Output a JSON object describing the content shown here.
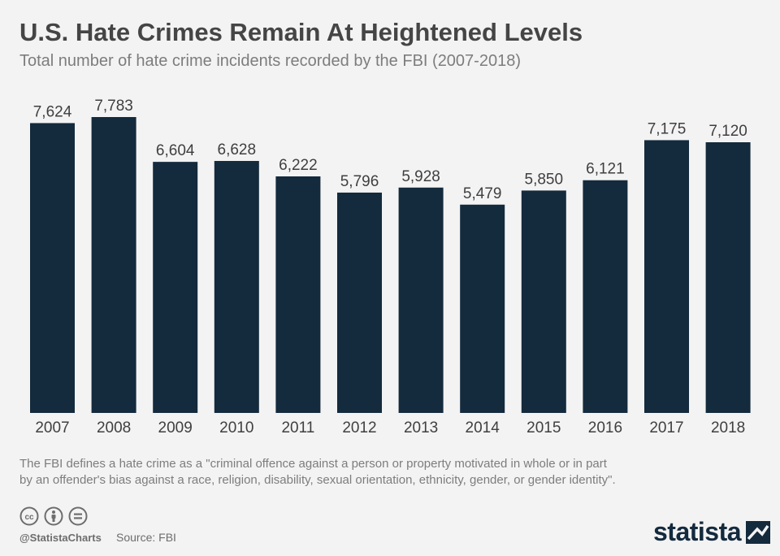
{
  "header": {
    "title": "U.S. Hate Crimes Remain At Heightened Levels",
    "subtitle": "Total number of hate crime incidents recorded by the FBI (2007-2018)"
  },
  "chart_data": {
    "type": "bar",
    "title": "U.S. Hate Crimes Remain At Heightened Levels",
    "subtitle": "Total number of hate crime incidents recorded by the FBI (2007-2018)",
    "categories": [
      "2007",
      "2008",
      "2009",
      "2010",
      "2011",
      "2012",
      "2013",
      "2014",
      "2015",
      "2016",
      "2017",
      "2018"
    ],
    "values": [
      7624,
      7783,
      6604,
      6628,
      6222,
      5796,
      5928,
      5479,
      5850,
      6121,
      7175,
      7120
    ],
    "value_labels": [
      "7,624",
      "7,783",
      "6,604",
      "6,628",
      "6,222",
      "5,796",
      "5,928",
      "5,479",
      "5,850",
      "6,121",
      "7,175",
      "7,120"
    ],
    "xlabel": "",
    "ylabel": "",
    "ylim": [
      0,
      7783
    ],
    "grid": false,
    "legend": "none",
    "bar_color": "#142a3d"
  },
  "footnote": {
    "line1": "The FBI defines a hate crime as a \"criminal offence against a person or property motivated in whole or in part",
    "line2": "by an offender's bias against a race, religion, disability, sexual orientation, ethnicity, gender, or gender identity\"."
  },
  "footer": {
    "license_icons": [
      "cc-icon",
      "attribution-icon",
      "no-derivatives-icon"
    ],
    "handle": "@StatistaCharts",
    "source": "Source: FBI",
    "brand": "statista"
  },
  "colors": {
    "background": "#f3f3f3",
    "bar": "#142a3d",
    "title": "#454545",
    "muted": "#7d7d7d"
  }
}
